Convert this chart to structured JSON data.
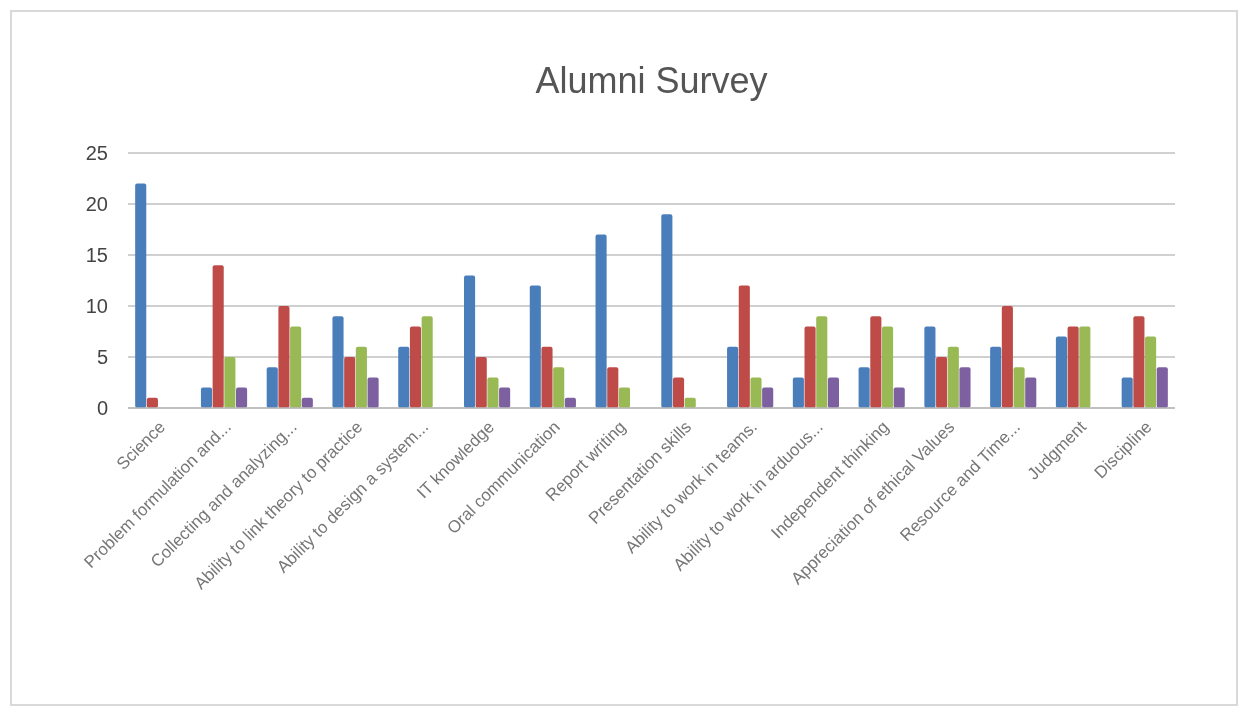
{
  "chart_data": {
    "type": "bar",
    "title": "Alumni Survey",
    "categories": [
      "Science",
      "Problem formulation and...",
      "Collecting and analyzing...",
      "Ability to link theory to practice",
      "Ability to design a system...",
      "IT knowledge",
      "Oral communication",
      "Report writing",
      "Presentation skills",
      "Ability to work in teams.",
      "Ability to work in arduous...",
      "Independent thinking",
      "Appreciation of ethical Values",
      "Resource and Time...",
      "Judgment",
      "Discipline"
    ],
    "series": [
      {
        "color": "#4a7ebb",
        "values": [
          22,
          2,
          4,
          9,
          6,
          13,
          12,
          17,
          19,
          6,
          3,
          4,
          8,
          6,
          7,
          3
        ]
      },
      {
        "color": "#be4b48",
        "values": [
          1,
          14,
          10,
          5,
          8,
          5,
          6,
          4,
          3,
          12,
          8,
          9,
          5,
          10,
          8,
          9
        ]
      },
      {
        "color": "#98b954",
        "values": [
          0,
          5,
          8,
          6,
          9,
          3,
          4,
          2,
          1,
          3,
          9,
          8,
          6,
          4,
          8,
          7
        ]
      },
      {
        "color": "#7d60a0",
        "values": [
          0,
          2,
          1,
          3,
          0,
          2,
          1,
          0,
          0,
          2,
          3,
          2,
          4,
          3,
          0,
          4
        ]
      }
    ],
    "ylim": [
      0,
      25
    ],
    "yticks": [
      0,
      5,
      10,
      15,
      20,
      25
    ],
    "grid": "y"
  }
}
